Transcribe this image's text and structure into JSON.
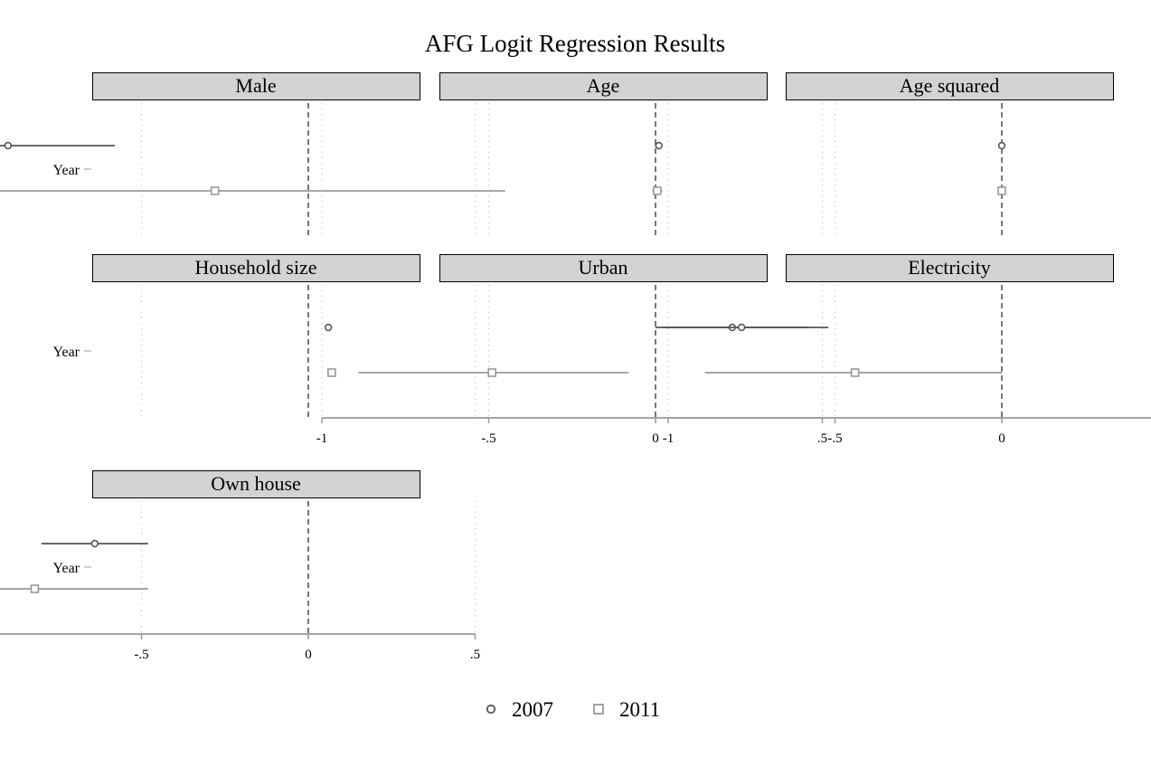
{
  "chart_data": {
    "type": "scatter",
    "subtype": "coefficient-plot-faceted",
    "title": "AFG Logit Regression Results",
    "category_label": "Year",
    "x_ticks": [
      -1,
      -0.5,
      0,
      0.5
    ],
    "x_tick_labels": [
      "-1",
      "-.5",
      "0",
      ".5"
    ],
    "xlim": [
      -1.3,
      0.65
    ],
    "reference_line": 0,
    "legend": {
      "position": "bottom-center",
      "items": [
        {
          "label": "2007",
          "marker": "circle",
          "color": "#555555"
        },
        {
          "label": "2011",
          "marker": "square",
          "color": "#999999"
        }
      ]
    },
    "colors": {
      "series_2007": "#555555",
      "series_2011": "#999999",
      "strip_fill": "#d3d3d3",
      "reference_line": "#555555",
      "axis": "#999999"
    },
    "panels": [
      {
        "name": "Male",
        "x_axis_shown": false,
        "series": [
          {
            "name": "2007",
            "estimate": -0.9,
            "ci": [
              -1.21,
              -0.58
            ]
          },
          {
            "name": "2011",
            "estimate": -0.28,
            "ci": [
              -1.15,
              0.59
            ]
          }
        ]
      },
      {
        "name": "Age",
        "x_axis_shown": false,
        "series": [
          {
            "name": "2007",
            "estimate": 0.01,
            "ci": [
              0.0,
              0.02
            ]
          },
          {
            "name": "2011",
            "estimate": 0.005,
            "ci": [
              -0.01,
              0.02
            ]
          }
        ]
      },
      {
        "name": "Age squared",
        "x_axis_shown": false,
        "series": [
          {
            "name": "2007",
            "estimate": 0.0,
            "ci": [
              0.0,
              0.0
            ]
          },
          {
            "name": "2011",
            "estimate": 0.0,
            "ci": [
              0.0,
              0.0
            ]
          }
        ]
      },
      {
        "name": "Household size",
        "x_axis_shown": false,
        "series": [
          {
            "name": "2007",
            "estimate": 0.06,
            "ci": [
              0.05,
              0.07
            ]
          },
          {
            "name": "2011",
            "estimate": 0.07,
            "ci": [
              0.06,
              0.08
            ]
          }
        ]
      },
      {
        "name": "Urban",
        "x_axis_shown": true,
        "series": [
          {
            "name": "2007",
            "estimate": 0.23,
            "ci": [
              0.0,
              0.46
            ]
          },
          {
            "name": "2011",
            "estimate": -0.49,
            "ci": [
              -0.89,
              -0.08
            ]
          }
        ]
      },
      {
        "name": "Electricity",
        "x_axis_shown": true,
        "series": [
          {
            "name": "2007",
            "estimate": -0.78,
            "ci": [
              -1.02,
              -0.52
            ]
          },
          {
            "name": "2011",
            "estimate": -0.44,
            "ci": [
              -0.89,
              0.0
            ]
          }
        ]
      },
      {
        "name": "Own house",
        "x_axis_shown": true,
        "series": [
          {
            "name": "2007",
            "estimate": -0.64,
            "ci": [
              -0.8,
              -0.48
            ]
          },
          {
            "name": "2011",
            "estimate": -0.82,
            "ci": [
              -1.15,
              -0.48
            ]
          }
        ]
      }
    ]
  }
}
